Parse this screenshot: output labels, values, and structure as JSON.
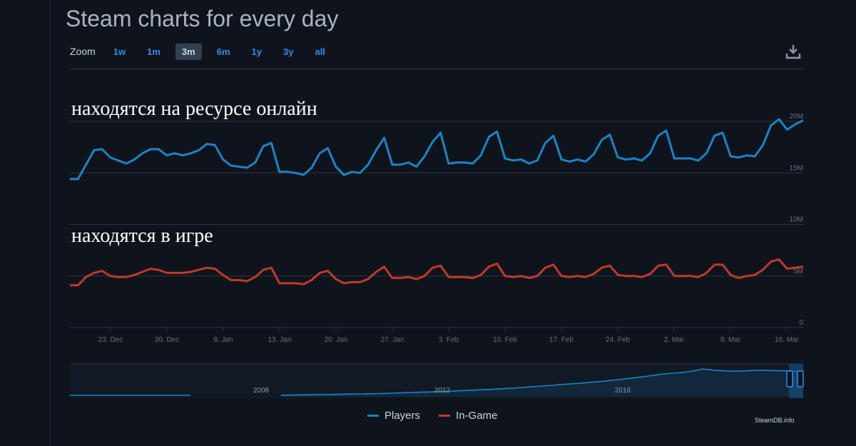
{
  "title": "Steam charts for every day",
  "zoom": {
    "label": "Zoom",
    "options": [
      "1w",
      "1m",
      "3m",
      "6m",
      "1y",
      "3y",
      "all"
    ],
    "active": "3m"
  },
  "annotations": {
    "online": "находятся на ресурсе онлайн",
    "in_game": "находятся в игре"
  },
  "legend": {
    "players": "Players",
    "in_game": "In-Game"
  },
  "credit": "SteamDB.info",
  "colors": {
    "players": "#1a84c7",
    "in_game": "#c0392b",
    "background": "#0f141c",
    "accent": "#2d8ef0"
  },
  "icons": {
    "download": "download-icon"
  },
  "chart_data": {
    "type": "line",
    "y_ticks": [
      "20M",
      "15M",
      "10M",
      "5M",
      "0"
    ],
    "y_values": [
      20,
      15,
      10,
      5,
      0
    ],
    "ylim": [
      0,
      20
    ],
    "y_unit": "M",
    "x_tick_labels": [
      "23. Dec",
      "30. Dec",
      "6. Jan",
      "13. Jan",
      "20. Jan",
      "27. Jan",
      "3. Feb",
      "10. Feb",
      "17. Feb",
      "24. Feb",
      "2. Mar",
      "9. Mar",
      "16. Mar"
    ],
    "series": [
      {
        "name": "Players",
        "values": [
          14.4,
          14.4,
          15.8,
          17.2,
          17.3,
          16.5,
          16.2,
          15.9,
          16.3,
          16.9,
          17.3,
          17.3,
          16.7,
          16.9,
          16.7,
          16.9,
          17.2,
          17.8,
          17.7,
          16.3,
          15.7,
          15.6,
          15.5,
          16.0,
          17.6,
          17.9,
          15.1,
          15.1,
          15.0,
          14.8,
          15.5,
          16.9,
          17.4,
          15.6,
          14.8,
          15.1,
          15.0,
          15.8,
          17.2,
          18.4,
          15.8,
          15.8,
          16.0,
          15.6,
          16.6,
          18.0,
          18.9,
          15.9,
          16.0,
          16.0,
          15.9,
          16.7,
          18.5,
          19.0,
          16.4,
          16.2,
          16.3,
          15.9,
          16.2,
          17.9,
          18.6,
          16.3,
          16.1,
          16.3,
          16.1,
          16.8,
          18.2,
          18.7,
          16.5,
          16.3,
          16.4,
          16.2,
          16.9,
          18.6,
          19.1,
          16.4,
          16.4,
          16.4,
          16.2,
          16.9,
          18.6,
          18.9,
          16.6,
          16.5,
          16.7,
          16.6,
          17.7,
          19.6,
          20.2,
          19.2,
          19.7,
          20.1
        ]
      },
      {
        "name": "In-Game",
        "values": [
          4.1,
          4.1,
          4.9,
          5.3,
          5.5,
          5.0,
          4.9,
          4.9,
          5.1,
          5.4,
          5.7,
          5.6,
          5.3,
          5.3,
          5.3,
          5.4,
          5.6,
          5.8,
          5.7,
          5.1,
          4.6,
          4.6,
          4.5,
          4.9,
          5.6,
          5.8,
          4.3,
          4.3,
          4.3,
          4.2,
          4.6,
          5.3,
          5.5,
          4.7,
          4.3,
          4.4,
          4.4,
          4.7,
          5.4,
          5.9,
          4.8,
          4.8,
          4.9,
          4.7,
          5.0,
          5.8,
          6.0,
          4.9,
          4.9,
          4.9,
          4.8,
          5.1,
          5.9,
          6.2,
          5.0,
          4.9,
          5.0,
          4.8,
          5.0,
          5.8,
          6.1,
          5.0,
          4.9,
          5.0,
          4.9,
          5.2,
          5.8,
          6.0,
          5.1,
          5.0,
          5.0,
          4.9,
          5.2,
          6.0,
          6.1,
          5.0,
          5.0,
          5.0,
          4.9,
          5.3,
          6.1,
          6.1,
          5.1,
          4.8,
          5.0,
          5.1,
          5.6,
          6.4,
          6.6,
          5.7,
          5.8,
          5.9
        ]
      }
    ],
    "navigator": {
      "x_tick_labels": [
        "2008",
        "2012",
        "2016"
      ],
      "values": [
        1,
        1,
        1,
        1,
        1,
        1,
        1,
        1,
        1,
        1,
        1,
        1,
        1,
        null,
        null,
        null,
        null,
        null,
        null,
        null,
        null,
        1.1,
        1.2,
        1.3,
        1.4,
        1.5,
        1.6,
        1.8,
        1.9,
        2.0,
        2.1,
        2.3,
        2.5,
        2.7,
        3.0,
        3.2,
        3.4,
        3.7,
        4.0,
        4.3,
        4.6,
        4.9,
        5.2,
        5.6,
        6.0,
        6.5,
        7.0,
        7.5,
        8.0,
        8.6,
        9.1,
        9.6,
        10.2,
        10.8,
        11.6,
        12.3,
        13.1,
        14.0,
        14.9,
        15.9,
        16.5,
        17.0,
        18.0,
        19.5,
        18.7,
        18.2,
        18.0,
        18.1,
        18.4,
        18.6,
        18.3,
        18.2,
        18.1,
        18.0
      ],
      "ylim": [
        0,
        22
      ]
    },
    "grid": true,
    "legend_position": "bottom-center"
  }
}
